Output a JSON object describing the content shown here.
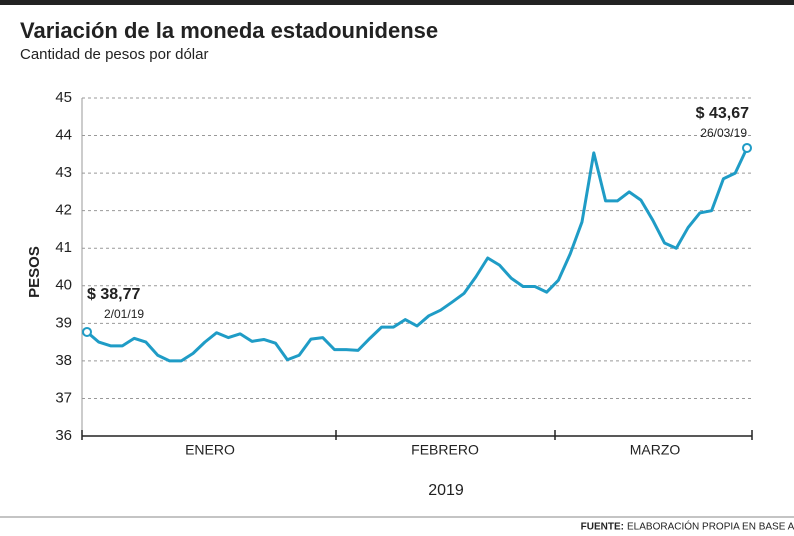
{
  "chart_data": {
    "type": "line",
    "title": "Variación de la moneda estadounidense",
    "subtitle": "Cantidad de pesos por dólar",
    "y_label": "PESOS",
    "x_label": "2019",
    "months": [
      "ENERO",
      "FEBRERO",
      "MARZO"
    ],
    "series": [
      {
        "name": "Pesos por dólar",
        "color": "#1f9cc6",
        "values": [
          38.77,
          38.5,
          38.4,
          38.4,
          38.6,
          38.5,
          38.15,
          38.0,
          38.0,
          38.2,
          38.5,
          38.75,
          38.62,
          38.72,
          38.52,
          38.57,
          38.47,
          38.03,
          38.15,
          38.58,
          38.62,
          38.3,
          38.3,
          38.28,
          38.6,
          38.9,
          38.9,
          39.1,
          38.93,
          39.2,
          39.35,
          39.57,
          39.8,
          40.24,
          40.74,
          40.55,
          40.2,
          39.98,
          39.98,
          39.83,
          40.15,
          40.85,
          41.7,
          43.54,
          42.26,
          42.26,
          42.5,
          42.28,
          41.75,
          41.14,
          41.0,
          41.55,
          41.94,
          42.0,
          42.85,
          43.0,
          43.67
        ]
      }
    ],
    "annotations": [
      {
        "value_label": "$ 38,77",
        "date": "2/01/19"
      },
      {
        "value_label": "$ 43,67",
        "date": "26/03/19"
      }
    ],
    "ylim": [
      36,
      45
    ],
    "yticks": [
      36,
      37,
      38,
      39,
      40,
      41,
      42,
      43,
      44,
      45
    ],
    "grid": true,
    "source_label": "FUENTE:",
    "source": "ELABORACIÓN PROPIA EN BASE A DATOS DEL BCRA"
  }
}
